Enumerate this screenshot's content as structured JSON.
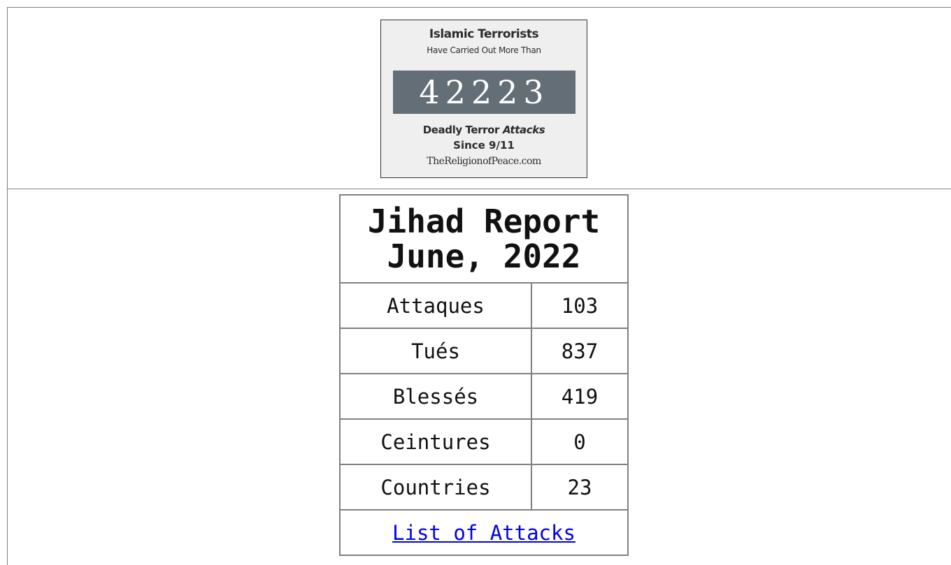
{
  "banner": {
    "line1": "Islamic Terrorists",
    "line2": "Have Carried Out More Than",
    "count": 42223,
    "line3": "Deadly Terror",
    "line3_italic": "Attacks",
    "line4": "Since 9/11",
    "site": "TheReligionofPeace.com"
  },
  "report": {
    "title": "Jihad Report",
    "subtitle": "June, 2022",
    "rows": [
      [
        "Attaques",
        103
      ],
      [
        "Tués",
        837
      ],
      [
        "Blessés",
        419
      ],
      [
        "Ceintures",
        0
      ],
      [
        "Countries",
        23
      ]
    ],
    "link": "List of Attacks"
  }
}
